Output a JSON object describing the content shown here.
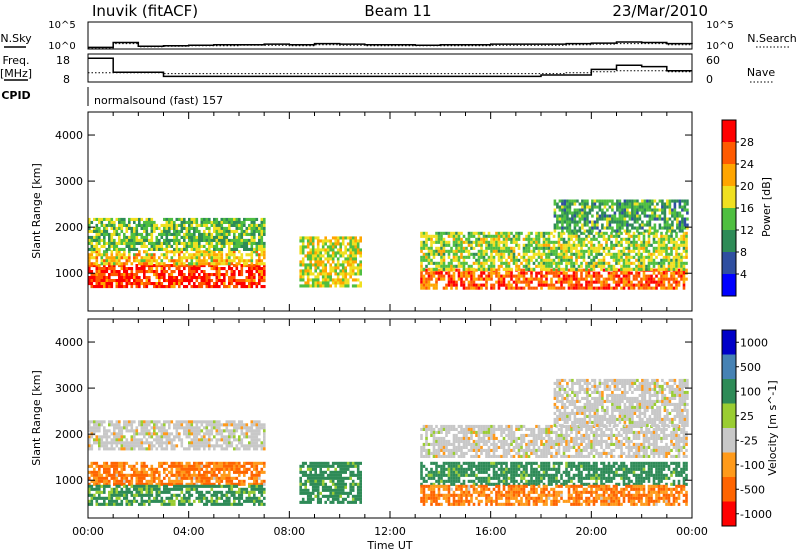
{
  "header": {
    "station": "Inuvik (fitACF)",
    "beam": "Beam 11",
    "date": "23/Mar/2010"
  },
  "noise_panel": {
    "left_label": "N.Sky",
    "right_label": "N.Search",
    "left_ticks": [
      "10^5",
      "10^0"
    ],
    "right_ticks": [
      "10^5",
      "10^0"
    ]
  },
  "freq_panel": {
    "left_label_1": "Freq.",
    "left_label_2": "[MHz]",
    "right_label": "Nave",
    "left_ticks": [
      "18",
      "8"
    ],
    "right_ticks": [
      "60",
      "0"
    ]
  },
  "cpid": {
    "label": "CPID",
    "value": "normalsound (fast) 157"
  },
  "colors": {
    "power": [
      "#0000ff",
      "#2f4fa0",
      "#2e8b57",
      "#4fbf40",
      "#f0e020",
      "#ffa500",
      "#ff5a00",
      "#ff0000"
    ],
    "velocity": [
      "#ff0000",
      "#ff6400",
      "#ff9a1a",
      "#c8c8c8",
      "#9acd32",
      "#2e8b57",
      "#4682b4",
      "#0000c8"
    ]
  },
  "chart_data": [
    {
      "type": "line",
      "title": "",
      "series": [
        {
          "name": "N.Sky",
          "values": [
            0.3,
            1.2,
            0.5,
            0.6,
            0.7,
            0.8,
            0.8,
            0.9,
            0.8,
            1.0,
            0.9,
            0.8,
            0.8,
            0.7,
            0.8,
            0.8,
            0.9,
            0.9,
            0.9,
            1.0,
            1.1,
            1.3,
            1.2,
            1.0,
            0.9
          ]
        },
        {
          "name": "N.Search",
          "values": [
            0.2,
            1.0,
            0.4,
            0.5,
            0.6,
            0.6,
            0.7,
            0.7,
            0.6,
            0.8,
            0.7,
            0.6,
            0.6,
            0.6,
            0.6,
            0.6,
            0.7,
            0.7,
            0.7,
            0.8,
            0.9,
            1.0,
            1.0,
            0.8,
            0.7
          ]
        }
      ],
      "x": [
        0,
        1,
        2,
        3,
        4,
        5,
        6,
        7,
        8,
        9,
        10,
        11,
        12,
        13,
        14,
        15,
        16,
        17,
        18,
        19,
        20,
        21,
        22,
        23,
        24
      ],
      "ylabel": "N.Sky",
      "ylabel_right": "N.Search",
      "yscale": "log",
      "ylim": [
        0,
        100000
      ]
    },
    {
      "type": "line",
      "title": "",
      "series": [
        {
          "name": "Freq",
          "values": [
            16.5,
            11.5,
            11.5,
            10.0,
            10.0,
            10.0,
            10.0,
            10.0,
            10.0,
            10.0,
            10.0,
            10.0,
            10.0,
            10.0,
            10.0,
            10.0,
            10.0,
            10.0,
            10.5,
            10.5,
            12.5,
            14.0,
            13.5,
            12.0,
            12.0
          ]
        },
        {
          "name": "Nave",
          "values": [
            20,
            20,
            20,
            18,
            18,
            18,
            18,
            18,
            18,
            18,
            18,
            18,
            18,
            18,
            18,
            18,
            18,
            18,
            18,
            20,
            22,
            24,
            24,
            22,
            22
          ]
        }
      ],
      "x": [
        0,
        1,
        2,
        3,
        4,
        5,
        6,
        7,
        8,
        9,
        10,
        11,
        12,
        13,
        14,
        15,
        16,
        17,
        18,
        19,
        20,
        21,
        22,
        23,
        24
      ],
      "ylabel": "Freq. [MHz]",
      "ylabel_right": "Nave",
      "ylim": [
        8,
        18
      ],
      "ylim_right": [
        0,
        60
      ]
    },
    {
      "type": "heatmap",
      "title": "",
      "ylabel": "Slant Range [km]",
      "xlabel": "",
      "xlim": [
        0,
        24
      ],
      "ylim": [
        180,
        4500
      ],
      "yticks": [
        1000,
        2000,
        3000,
        4000
      ],
      "colorbar_label": "Power [dB]",
      "colorbar_ticks": [
        4,
        8,
        12,
        16,
        20,
        24,
        28
      ],
      "regions": [
        {
          "t0": 0.0,
          "t1": 7.0,
          "r0": 700,
          "r1": 1200,
          "level": 28
        },
        {
          "t0": 0.0,
          "t1": 7.0,
          "r0": 1200,
          "r1": 1500,
          "level": 20
        },
        {
          "t0": 0.0,
          "t1": 7.0,
          "r0": 1500,
          "r1": 2200,
          "level": 14
        },
        {
          "t0": 8.4,
          "t1": 10.8,
          "r0": 700,
          "r1": 1800,
          "level": 18
        },
        {
          "t0": 13.2,
          "t1": 23.8,
          "r0": 700,
          "r1": 1100,
          "level": 26
        },
        {
          "t0": 13.2,
          "t1": 23.8,
          "r0": 1100,
          "r1": 1900,
          "level": 16
        },
        {
          "t0": 18.5,
          "t1": 23.8,
          "r0": 1900,
          "r1": 2600,
          "level": 12
        }
      ]
    },
    {
      "type": "heatmap",
      "title": "",
      "ylabel": "Slant Range [km]",
      "xlabel": "Time UT",
      "xlim": [
        0,
        24
      ],
      "ylim": [
        180,
        4500
      ],
      "yticks": [
        1000,
        2000,
        3000,
        4000
      ],
      "xticks": [
        "00:00",
        "04:00",
        "08:00",
        "12:00",
        "16:00",
        "20:00",
        "00:00"
      ],
      "colorbar_label": "Velocity [m s^-1]",
      "colorbar_ticks": [
        -1000,
        -500,
        -100,
        -25,
        25,
        100,
        500,
        1000
      ],
      "regions": [
        {
          "t0": 0.0,
          "t1": 7.0,
          "r0": 1700,
          "r1": 2300,
          "level": 0
        },
        {
          "t0": 0.0,
          "t1": 7.0,
          "r0": 900,
          "r1": 1400,
          "level": -100
        },
        {
          "t0": 0.0,
          "t1": 7.0,
          "r0": 500,
          "r1": 900,
          "level": 150
        },
        {
          "t0": 8.4,
          "t1": 10.8,
          "r0": 500,
          "r1": 1400,
          "level": 200
        },
        {
          "t0": 13.2,
          "t1": 23.8,
          "r0": 1500,
          "r1": 2200,
          "level": 0
        },
        {
          "t0": 13.2,
          "t1": 23.8,
          "r0": 900,
          "r1": 1400,
          "level": 200
        },
        {
          "t0": 13.2,
          "t1": 23.8,
          "r0": 500,
          "r1": 900,
          "level": -100
        },
        {
          "t0": 18.5,
          "t1": 23.8,
          "r0": 2200,
          "r1": 3200,
          "level": 0
        }
      ]
    }
  ]
}
